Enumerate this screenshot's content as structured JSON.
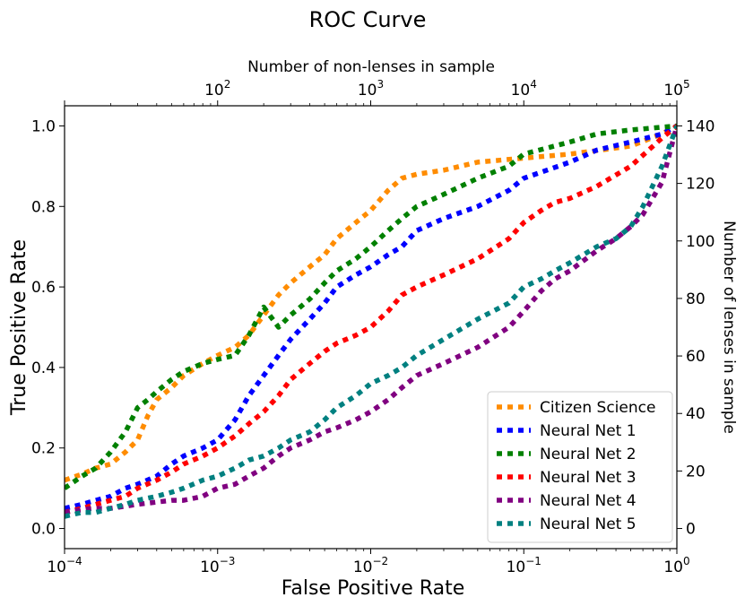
{
  "chart_data": {
    "type": "line",
    "title": "ROC Curve",
    "xlabel": "False Positive Rate",
    "ylabel": "True Positive Rate",
    "x2label": "Number of non-lenses in sample",
    "y2label": "Number of lenses in sample",
    "xscale": "log",
    "xlim": [
      0.0001,
      1
    ],
    "ylim": [
      -0.05,
      1.05
    ],
    "x2lim": [
      10,
      100000
    ],
    "y2lim": [
      -7,
      147
    ],
    "x_tick_labels": [
      {
        "value": 0.0001,
        "base": "10",
        "exp": "−4"
      },
      {
        "value": 0.001,
        "base": "10",
        "exp": "−3"
      },
      {
        "value": 0.01,
        "base": "10",
        "exp": "−2"
      },
      {
        "value": 0.1,
        "base": "10",
        "exp": "−1"
      },
      {
        "value": 1,
        "base": "10",
        "exp": "0"
      }
    ],
    "x2_tick_labels": [
      {
        "value": 100,
        "base": "10",
        "exp": "2"
      },
      {
        "value": 1000,
        "base": "10",
        "exp": "3"
      },
      {
        "value": 10000,
        "base": "10",
        "exp": "4"
      },
      {
        "value": 100000,
        "base": "10",
        "exp": "5"
      }
    ],
    "y_tick_labels": [
      "0.0",
      "0.2",
      "0.4",
      "0.6",
      "0.8",
      "1.0"
    ],
    "y_tick_values": [
      0.0,
      0.2,
      0.4,
      0.6,
      0.8,
      1.0
    ],
    "y2_tick_labels": [
      "0",
      "20",
      "40",
      "60",
      "80",
      "100",
      "120",
      "140"
    ],
    "y2_tick_values": [
      0,
      20,
      40,
      60,
      80,
      100,
      120,
      140
    ],
    "legend_position": "lower-right",
    "grid": false,
    "series": [
      {
        "name": "Citizen Science",
        "color": "#ff8c00",
        "x": [
          0.0001,
          0.00013,
          0.00016,
          0.0002,
          0.00025,
          0.0003,
          0.00035,
          0.0004,
          0.0005,
          0.0006,
          0.0008,
          0.001,
          0.0013,
          0.0016,
          0.002,
          0.0025,
          0.003,
          0.004,
          0.005,
          0.006,
          0.008,
          0.01,
          0.013,
          0.016,
          0.02,
          0.03,
          0.05,
          0.1,
          0.2,
          0.5,
          0.8,
          1.0
        ],
        "y": [
          0.12,
          0.135,
          0.15,
          0.16,
          0.19,
          0.22,
          0.28,
          0.32,
          0.35,
          0.38,
          0.41,
          0.43,
          0.45,
          0.48,
          0.53,
          0.58,
          0.61,
          0.65,
          0.68,
          0.72,
          0.76,
          0.79,
          0.84,
          0.87,
          0.88,
          0.89,
          0.91,
          0.92,
          0.93,
          0.95,
          0.98,
          1.0
        ]
      },
      {
        "name": "Neural Net 1",
        "color": "#0000ff",
        "x": [
          0.0001,
          0.00013,
          0.00016,
          0.0002,
          0.00025,
          0.0003,
          0.0004,
          0.0005,
          0.0006,
          0.0008,
          0.001,
          0.0013,
          0.0016,
          0.002,
          0.0025,
          0.003,
          0.004,
          0.005,
          0.006,
          0.008,
          0.01,
          0.013,
          0.016,
          0.02,
          0.03,
          0.05,
          0.08,
          0.1,
          0.2,
          0.3,
          0.5,
          0.8,
          1.0
        ],
        "y": [
          0.05,
          0.06,
          0.07,
          0.08,
          0.1,
          0.11,
          0.13,
          0.16,
          0.18,
          0.2,
          0.22,
          0.27,
          0.33,
          0.38,
          0.43,
          0.47,
          0.52,
          0.56,
          0.6,
          0.63,
          0.65,
          0.68,
          0.7,
          0.74,
          0.77,
          0.8,
          0.84,
          0.87,
          0.91,
          0.94,
          0.96,
          0.98,
          1.0
        ]
      },
      {
        "name": "Neural Net 2",
        "color": "#008000",
        "x": [
          0.0001,
          0.00013,
          0.00016,
          0.0002,
          0.00025,
          0.0003,
          0.00035,
          0.0004,
          0.0005,
          0.0006,
          0.0008,
          0.001,
          0.0013,
          0.0016,
          0.002,
          0.0025,
          0.003,
          0.004,
          0.005,
          0.006,
          0.008,
          0.01,
          0.013,
          0.016,
          0.02,
          0.03,
          0.05,
          0.08,
          0.1,
          0.2,
          0.3,
          0.5,
          1.0
        ],
        "y": [
          0.1,
          0.13,
          0.15,
          0.19,
          0.24,
          0.3,
          0.32,
          0.34,
          0.37,
          0.39,
          0.41,
          0.42,
          0.43,
          0.48,
          0.55,
          0.5,
          0.53,
          0.57,
          0.61,
          0.64,
          0.67,
          0.7,
          0.74,
          0.77,
          0.8,
          0.83,
          0.87,
          0.9,
          0.93,
          0.96,
          0.98,
          0.99,
          1.0
        ]
      },
      {
        "name": "Neural Net 3",
        "color": "#ff0000",
        "x": [
          0.0001,
          0.00013,
          0.00016,
          0.0002,
          0.00025,
          0.0003,
          0.0004,
          0.0005,
          0.0006,
          0.0008,
          0.001,
          0.0013,
          0.0016,
          0.002,
          0.0025,
          0.003,
          0.004,
          0.005,
          0.006,
          0.008,
          0.01,
          0.013,
          0.016,
          0.02,
          0.03,
          0.05,
          0.08,
          0.1,
          0.13,
          0.16,
          0.2,
          0.3,
          0.5,
          0.8,
          1.0
        ],
        "y": [
          0.04,
          0.05,
          0.06,
          0.07,
          0.08,
          0.1,
          0.12,
          0.14,
          0.16,
          0.18,
          0.2,
          0.23,
          0.26,
          0.29,
          0.33,
          0.37,
          0.41,
          0.44,
          0.46,
          0.48,
          0.5,
          0.54,
          0.58,
          0.6,
          0.63,
          0.67,
          0.72,
          0.76,
          0.79,
          0.81,
          0.82,
          0.85,
          0.9,
          0.97,
          1.0
        ]
      },
      {
        "name": "Neural Net 4",
        "color": "#800080",
        "x": [
          0.0001,
          0.00015,
          0.0002,
          0.0003,
          0.0005,
          0.0006,
          0.0008,
          0.001,
          0.0013,
          0.0016,
          0.002,
          0.0025,
          0.003,
          0.004,
          0.005,
          0.006,
          0.008,
          0.01,
          0.013,
          0.016,
          0.02,
          0.03,
          0.05,
          0.08,
          0.1,
          0.13,
          0.16,
          0.2,
          0.3,
          0.4,
          0.5,
          0.6,
          0.8,
          1.0
        ],
        "y": [
          0.04,
          0.05,
          0.05,
          0.06,
          0.07,
          0.07,
          0.08,
          0.1,
          0.11,
          0.13,
          0.15,
          0.18,
          0.2,
          0.22,
          0.24,
          0.25,
          0.27,
          0.29,
          0.32,
          0.35,
          0.38,
          0.41,
          0.45,
          0.5,
          0.54,
          0.59,
          0.62,
          0.64,
          0.69,
          0.72,
          0.75,
          0.78,
          0.86,
          1.0
        ]
      },
      {
        "name": "Neural Net 5",
        "color": "#008080",
        "x": [
          0.0001,
          0.00013,
          0.00016,
          0.0002,
          0.00025,
          0.0003,
          0.0004,
          0.0005,
          0.0006,
          0.0008,
          0.001,
          0.0013,
          0.0016,
          0.002,
          0.0025,
          0.003,
          0.004,
          0.005,
          0.006,
          0.008,
          0.01,
          0.013,
          0.016,
          0.02,
          0.03,
          0.05,
          0.08,
          0.1,
          0.13,
          0.16,
          0.2,
          0.3,
          0.4,
          0.5,
          0.6,
          0.8,
          1.0
        ],
        "y": [
          0.03,
          0.04,
          0.04,
          0.05,
          0.06,
          0.07,
          0.08,
          0.09,
          0.1,
          0.12,
          0.13,
          0.15,
          0.17,
          0.18,
          0.2,
          0.22,
          0.24,
          0.27,
          0.3,
          0.33,
          0.36,
          0.38,
          0.4,
          0.43,
          0.47,
          0.52,
          0.56,
          0.6,
          0.62,
          0.64,
          0.66,
          0.7,
          0.72,
          0.75,
          0.8,
          0.9,
          1.0
        ]
      }
    ]
  }
}
